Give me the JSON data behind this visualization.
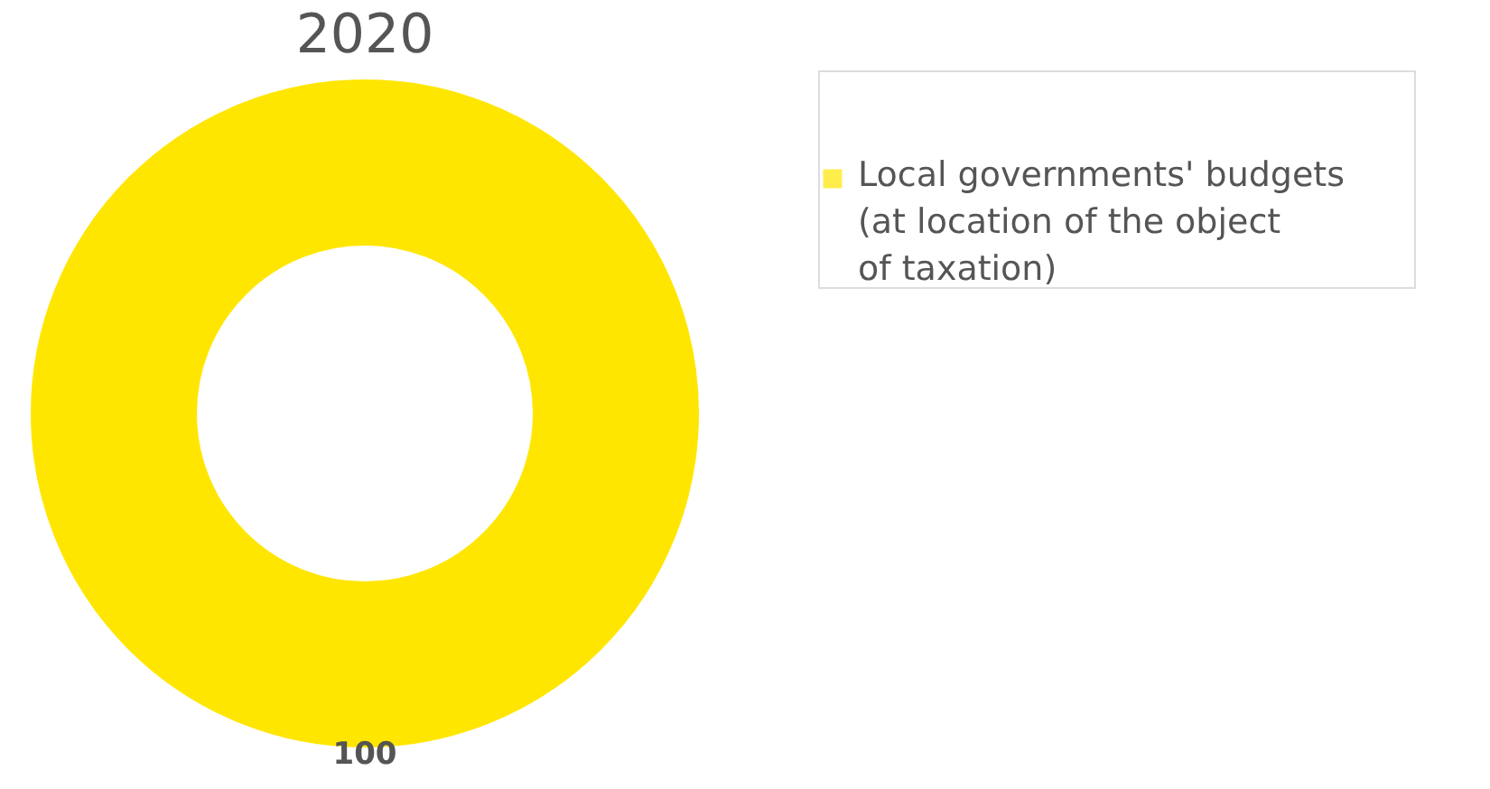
{
  "chart_data": {
    "type": "donut",
    "title": "2020",
    "categories": [
      "Local governments' budgets (at location of the object of taxation)"
    ],
    "values": [
      100
    ],
    "colors": [
      "#ffe600"
    ],
    "data_labels": true,
    "legend": "right"
  }
}
